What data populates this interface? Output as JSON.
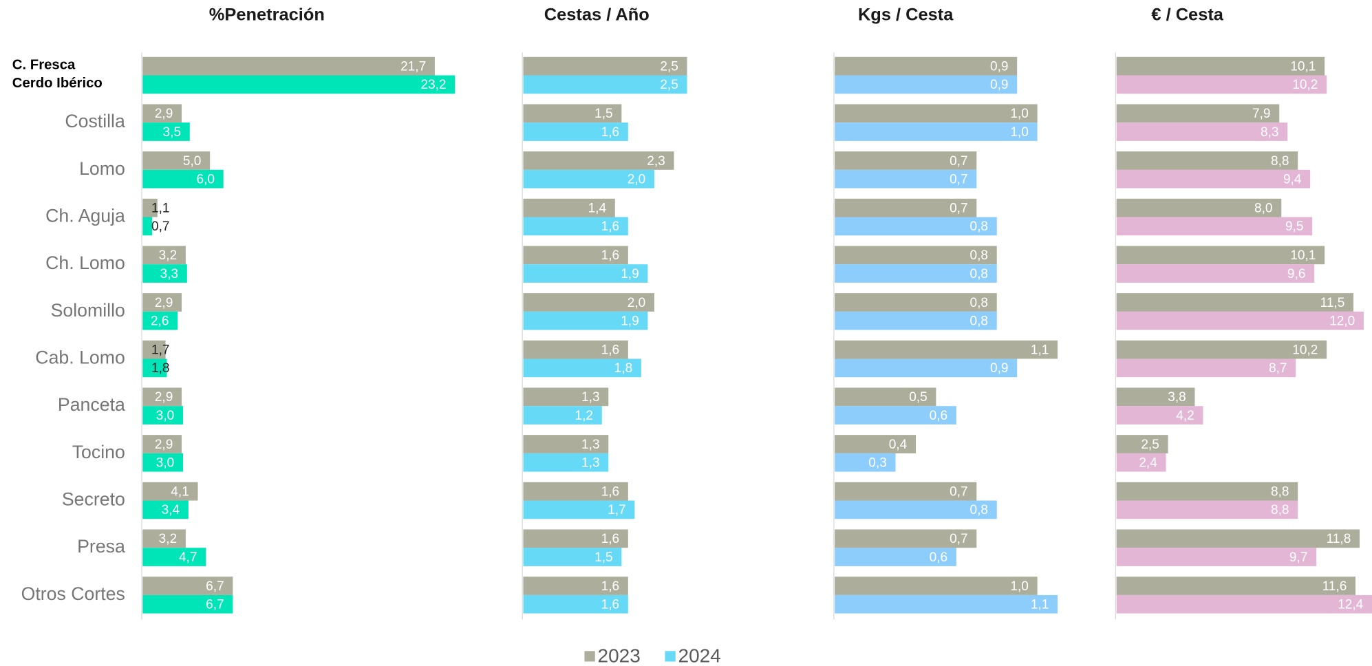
{
  "chart_data": [
    {
      "type": "bar",
      "title": "%Penetración",
      "categories": [
        "C. Fresca\nCerdo Ibérico",
        "Costilla",
        "Lomo",
        "Ch. Aguja",
        "Ch. Lomo",
        "Solomillo",
        "Cab. Lomo",
        "Panceta",
        "Tocino",
        "Secreto",
        "Presa",
        "Otros Cortes"
      ],
      "xlim": [
        0,
        25.8
      ],
      "series": [
        {
          "name": "2023",
          "color": "#adad9b",
          "values": [
            21.7,
            2.9,
            5.0,
            1.1,
            3.2,
            2.9,
            1.7,
            2.9,
            2.9,
            4.1,
            3.2,
            6.7
          ],
          "value_labels": [
            "21,7",
            "2,9",
            "5,0",
            "1,1",
            "3,2",
            "2,9",
            "1,7",
            "2,9",
            "2,9",
            "4,1",
            "3,2",
            "6,7"
          ]
        },
        {
          "name": "2024",
          "color": "#00e5b8",
          "values": [
            23.2,
            3.5,
            6.0,
            0.7,
            3.3,
            2.6,
            1.8,
            3.0,
            3.0,
            3.4,
            4.7,
            6.7
          ],
          "value_labels": [
            "23,2",
            "3,5",
            "6,0",
            "0,7",
            "3,3",
            "2,6",
            "1,8",
            "3,0",
            "3,0",
            "3,4",
            "4,7",
            "6,7"
          ]
        }
      ]
    },
    {
      "type": "bar",
      "title": "Cestas / Año",
      "xlim": [
        0,
        4.5
      ],
      "series": [
        {
          "name": "2023",
          "color": "#adad9b",
          "values": [
            2.5,
            1.5,
            2.3,
            1.4,
            1.6,
            2.0,
            1.6,
            1.3,
            1.3,
            1.6,
            1.6,
            1.6
          ],
          "value_labels": [
            "2,5",
            "1,5",
            "2,3",
            "1,4",
            "1,6",
            "2,0",
            "1,6",
            "1,3",
            "1,3",
            "1,6",
            "1,6",
            "1,6"
          ]
        },
        {
          "name": "2024",
          "color": "#66d9f7",
          "values": [
            2.5,
            1.6,
            2.0,
            1.6,
            1.9,
            1.9,
            1.8,
            1.2,
            1.3,
            1.7,
            1.5,
            1.6
          ],
          "value_labels": [
            "2,5",
            "1,6",
            "2,0",
            "1,6",
            "1,9",
            "1,9",
            "1,8",
            "1,2",
            "1,3",
            "1,7",
            "1,5",
            "1,6"
          ]
        }
      ]
    },
    {
      "type": "bar",
      "title": "Kgs / Cesta",
      "xlim": [
        0,
        1.3
      ],
      "series": [
        {
          "name": "2023",
          "color": "#adad9b",
          "values": [
            0.9,
            1.0,
            0.7,
            0.7,
            0.8,
            0.8,
            1.1,
            0.5,
            0.4,
            0.7,
            0.7,
            1.0
          ],
          "value_labels": [
            "0,9",
            "1,0",
            "0,7",
            "0,7",
            "0,8",
            "0,8",
            "1,1",
            "0,5",
            "0,4",
            "0,7",
            "0,7",
            "1,0"
          ]
        },
        {
          "name": "2024",
          "color": "#8dcdfc",
          "values": [
            0.9,
            1.0,
            0.7,
            0.8,
            0.8,
            0.8,
            0.9,
            0.6,
            0.3,
            0.8,
            0.6,
            1.1
          ],
          "value_labels": [
            "0,9",
            "1,0",
            "0,7",
            "0,8",
            "0,8",
            "0,8",
            "0,9",
            "0,6",
            "0,3",
            "0,8",
            "0,6",
            "1,1"
          ]
        }
      ]
    },
    {
      "type": "bar",
      "title": "€ / Cesta",
      "xlim": [
        0,
        12.4
      ],
      "series": [
        {
          "name": "2023",
          "color": "#adad9b",
          "values": [
            10.1,
            7.9,
            8.8,
            8.0,
            10.1,
            11.5,
            10.2,
            3.8,
            2.5,
            8.8,
            11.8,
            11.6
          ],
          "value_labels": [
            "10,1",
            "7,9",
            "8,8",
            "8,0",
            "10,1",
            "11,5",
            "10,2",
            "3,8",
            "2,5",
            "8,8",
            "11,8",
            "11,6"
          ]
        },
        {
          "name": "2024",
          "color": "#e4b6d6",
          "values": [
            10.2,
            8.3,
            9.4,
            9.5,
            9.6,
            12.0,
            8.7,
            4.2,
            2.4,
            8.8,
            9.7,
            12.4
          ],
          "value_labels": [
            "10,2",
            "8,3",
            "9,4",
            "9,5",
            "9,6",
            "12,0",
            "8,7",
            "4,2",
            "2,4",
            "8,8",
            "9,7",
            "12,4"
          ]
        }
      ]
    }
  ]
}
